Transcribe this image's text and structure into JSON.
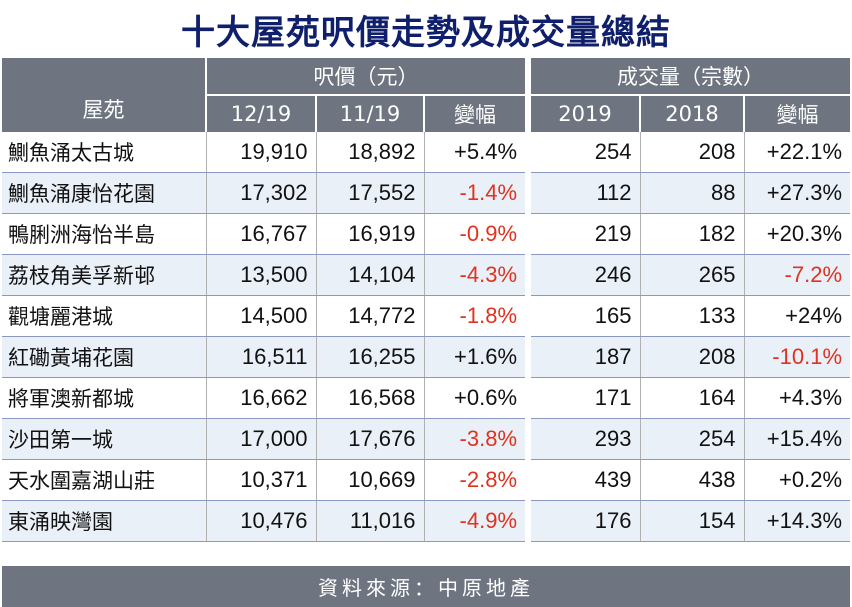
{
  "title": "十大屋苑呎價走勢及成交量總結",
  "headers": {
    "estate": "屋苑",
    "price_group": "呎價（元）",
    "volume_group": "成交量（宗數）",
    "price_cols": [
      "12/19",
      "11/19",
      "變幅"
    ],
    "volume_cols": [
      "2019",
      "2018",
      "變幅"
    ]
  },
  "rows": [
    {
      "name": "鰂魚涌太古城",
      "p1219": "19,910",
      "p1119": "18,892",
      "pchg": "+5.4%",
      "v2019": "254",
      "v2018": "208",
      "vchg": "+22.1%"
    },
    {
      "name": "鰂魚涌康怡花園",
      "p1219": "17,302",
      "p1119": "17,552",
      "pchg": "-1.4%",
      "v2019": "112",
      "v2018": "88",
      "vchg": "+27.3%"
    },
    {
      "name": "鴨脷洲海怡半島",
      "p1219": "16,767",
      "p1119": "16,919",
      "pchg": "-0.9%",
      "v2019": "219",
      "v2018": "182",
      "vchg": "+20.3%"
    },
    {
      "name": "荔枝角美孚新邨",
      "p1219": "13,500",
      "p1119": "14,104",
      "pchg": "-4.3%",
      "v2019": "246",
      "v2018": "265",
      "vchg": "-7.2%"
    },
    {
      "name": "觀塘麗港城",
      "p1219": "14,500",
      "p1119": "14,772",
      "pchg": "-1.8%",
      "v2019": "165",
      "v2018": "133",
      "vchg": "+24%"
    },
    {
      "name": "紅磡黃埔花園",
      "p1219": "16,511",
      "p1119": "16,255",
      "pchg": "+1.6%",
      "v2019": "187",
      "v2018": "208",
      "vchg": "-10.1%"
    },
    {
      "name": "將軍澳新都城",
      "p1219": "16,662",
      "p1119": "16,568",
      "pchg": "+0.6%",
      "v2019": "171",
      "v2018": "164",
      "vchg": "+4.3%"
    },
    {
      "name": "沙田第一城",
      "p1219": "17,000",
      "p1119": "17,676",
      "pchg": "-3.8%",
      "v2019": "293",
      "v2018": "254",
      "vchg": "+15.4%"
    },
    {
      "name": "天水圍嘉湖山莊",
      "p1219": "10,371",
      "p1119": "10,669",
      "pchg": "-2.8%",
      "v2019": "439",
      "v2018": "438",
      "vchg": "+0.2%"
    },
    {
      "name": "東涌映灣園",
      "p1219": "10,476",
      "p1119": "11,016",
      "pchg": "-4.9%",
      "v2019": "176",
      "v2018": "154",
      "vchg": "+14.3%"
    }
  ],
  "source": "資料來源：中原地產",
  "colors": {
    "title": "#0f1f6b",
    "header_bg": "#6e7580",
    "negative": "#e0321e",
    "stripe": "#eaf0f8"
  }
}
